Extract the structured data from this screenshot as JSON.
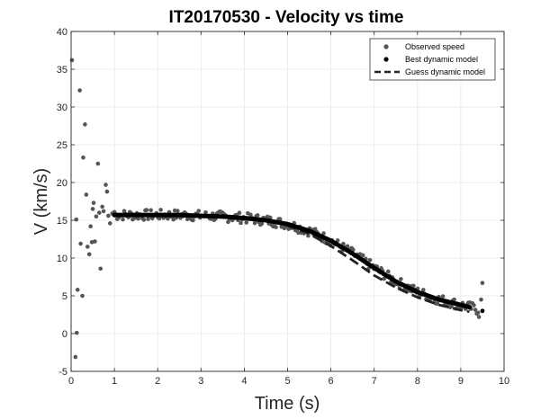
{
  "chart_data": {
    "type": "scatter",
    "title": "IT20170530 - Velocity vs time",
    "xlabel": "Time (s)",
    "ylabel": "V (km/s)",
    "xlim": [
      0,
      10
    ],
    "ylim": [
      -5,
      40
    ],
    "grid": true,
    "legend_position": "top-right",
    "x_ticks": [
      "0",
      "1",
      "2",
      "3",
      "4",
      "5",
      "6",
      "7",
      "8",
      "9",
      "10"
    ],
    "y_ticks": [
      "-5",
      "0",
      "5",
      "10",
      "15",
      "20",
      "25",
      "30",
      "35",
      "40"
    ],
    "legend": [
      "Observed speed",
      "Best dynamic model",
      "Guess dynamic model"
    ],
    "series": [
      {
        "name": "Observed speed",
        "style": "scatter",
        "color": "#555555",
        "outlier_points": [
          [
            0.02,
            36.2
          ],
          [
            0.1,
            -3.1
          ],
          [
            0.12,
            15.1
          ],
          [
            0.13,
            0.1
          ],
          [
            0.15,
            5.8
          ],
          [
            0.2,
            32.2
          ],
          [
            0.22,
            11.9
          ],
          [
            0.26,
            5.0
          ],
          [
            0.28,
            23.3
          ],
          [
            0.32,
            27.7
          ],
          [
            0.35,
            18.4
          ],
          [
            0.38,
            11.5
          ],
          [
            0.42,
            10.5
          ],
          [
            0.45,
            14.2
          ],
          [
            0.48,
            12.1
          ],
          [
            0.5,
            16.5
          ],
          [
            0.52,
            17.3
          ],
          [
            0.55,
            12.2
          ],
          [
            0.58,
            15.5
          ],
          [
            0.62,
            22.5
          ],
          [
            0.65,
            16.0
          ],
          [
            0.68,
            8.6
          ],
          [
            0.72,
            16.8
          ],
          [
            0.75,
            16.2
          ],
          [
            0.8,
            19.7
          ],
          [
            0.83,
            18.8
          ],
          [
            0.86,
            15.6
          ],
          [
            0.9,
            14.6
          ],
          [
            0.95,
            15.9
          ],
          [
            1.0,
            16.1
          ],
          [
            9.42,
            2.2
          ],
          [
            9.47,
            4.5
          ],
          [
            9.5,
            6.7
          ]
        ],
        "dense_trend": {
          "t_start": 1.0,
          "t_end": 9.4,
          "spread": 0.7
        }
      },
      {
        "name": "Best dynamic model",
        "style": "dots",
        "color": "#000000",
        "points": [
          [
            1.0,
            15.7
          ],
          [
            1.5,
            15.7
          ],
          [
            2.0,
            15.7
          ],
          [
            2.5,
            15.7
          ],
          [
            3.0,
            15.6
          ],
          [
            3.5,
            15.5
          ],
          [
            4.0,
            15.3
          ],
          [
            4.5,
            15.0
          ],
          [
            5.0,
            14.5
          ],
          [
            5.5,
            13.6
          ],
          [
            6.0,
            12.3
          ],
          [
            6.5,
            10.6
          ],
          [
            7.0,
            8.7
          ],
          [
            7.5,
            6.9
          ],
          [
            8.0,
            5.5
          ],
          [
            8.5,
            4.5
          ],
          [
            9.0,
            3.8
          ],
          [
            9.2,
            3.5
          ],
          [
            9.5,
            3.0
          ]
        ]
      },
      {
        "name": "Guess dynamic model",
        "style": "dashed-line",
        "color": "#222222",
        "points": [
          [
            1.0,
            15.7
          ],
          [
            1.5,
            15.7
          ],
          [
            2.0,
            15.7
          ],
          [
            2.5,
            15.7
          ],
          [
            3.0,
            15.6
          ],
          [
            3.5,
            15.5
          ],
          [
            4.0,
            15.3
          ],
          [
            4.5,
            15.0
          ],
          [
            5.0,
            14.3
          ],
          [
            5.5,
            13.2
          ],
          [
            6.0,
            11.6
          ],
          [
            6.5,
            9.7
          ],
          [
            7.0,
            7.7
          ],
          [
            7.5,
            6.1
          ],
          [
            8.0,
            4.8
          ],
          [
            8.5,
            3.8
          ],
          [
            9.0,
            3.1
          ],
          [
            9.2,
            2.9
          ]
        ]
      }
    ]
  }
}
